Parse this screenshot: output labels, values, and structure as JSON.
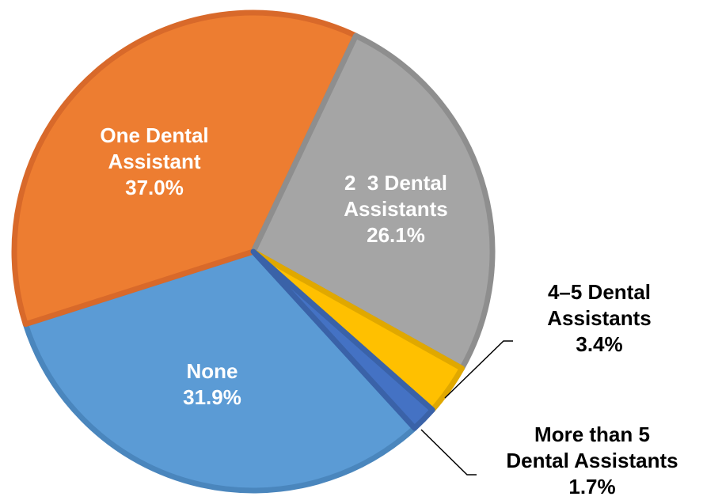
{
  "chart_data": {
    "type": "pie",
    "slices": [
      {
        "label_lines": [
          "None"
        ],
        "value": 31.9,
        "value_label": "31.9%",
        "color": "#5b9bd5",
        "border": "#4a86bd",
        "label_color": "#ffffff"
      },
      {
        "label_lines": [
          "One Dental",
          "Assistant"
        ],
        "value": 37.0,
        "value_label": "37.0%",
        "color": "#ed7d31",
        "border": "#d8692a",
        "label_color": "#ffffff"
      },
      {
        "label_lines": [
          "2  3 Dental",
          "Assistants"
        ],
        "value": 26.1,
        "value_label": "26.1%",
        "color": "#a5a5a5",
        "border": "#8e8e8e",
        "label_color": "#ffffff"
      },
      {
        "label_lines": [
          "4–5 Dental",
          "Assistants"
        ],
        "value": 3.4,
        "value_label": "3.4%",
        "color": "#ffc000",
        "border": "#e0a800",
        "label_color": "#000000"
      },
      {
        "label_lines": [
          "More than 5",
          "Dental Assistants"
        ],
        "value": 1.7,
        "value_label": "1.7%",
        "color": "#4472c4",
        "border": "#3a62a8",
        "label_color": "#000000"
      }
    ],
    "title": "",
    "legend": "none"
  }
}
